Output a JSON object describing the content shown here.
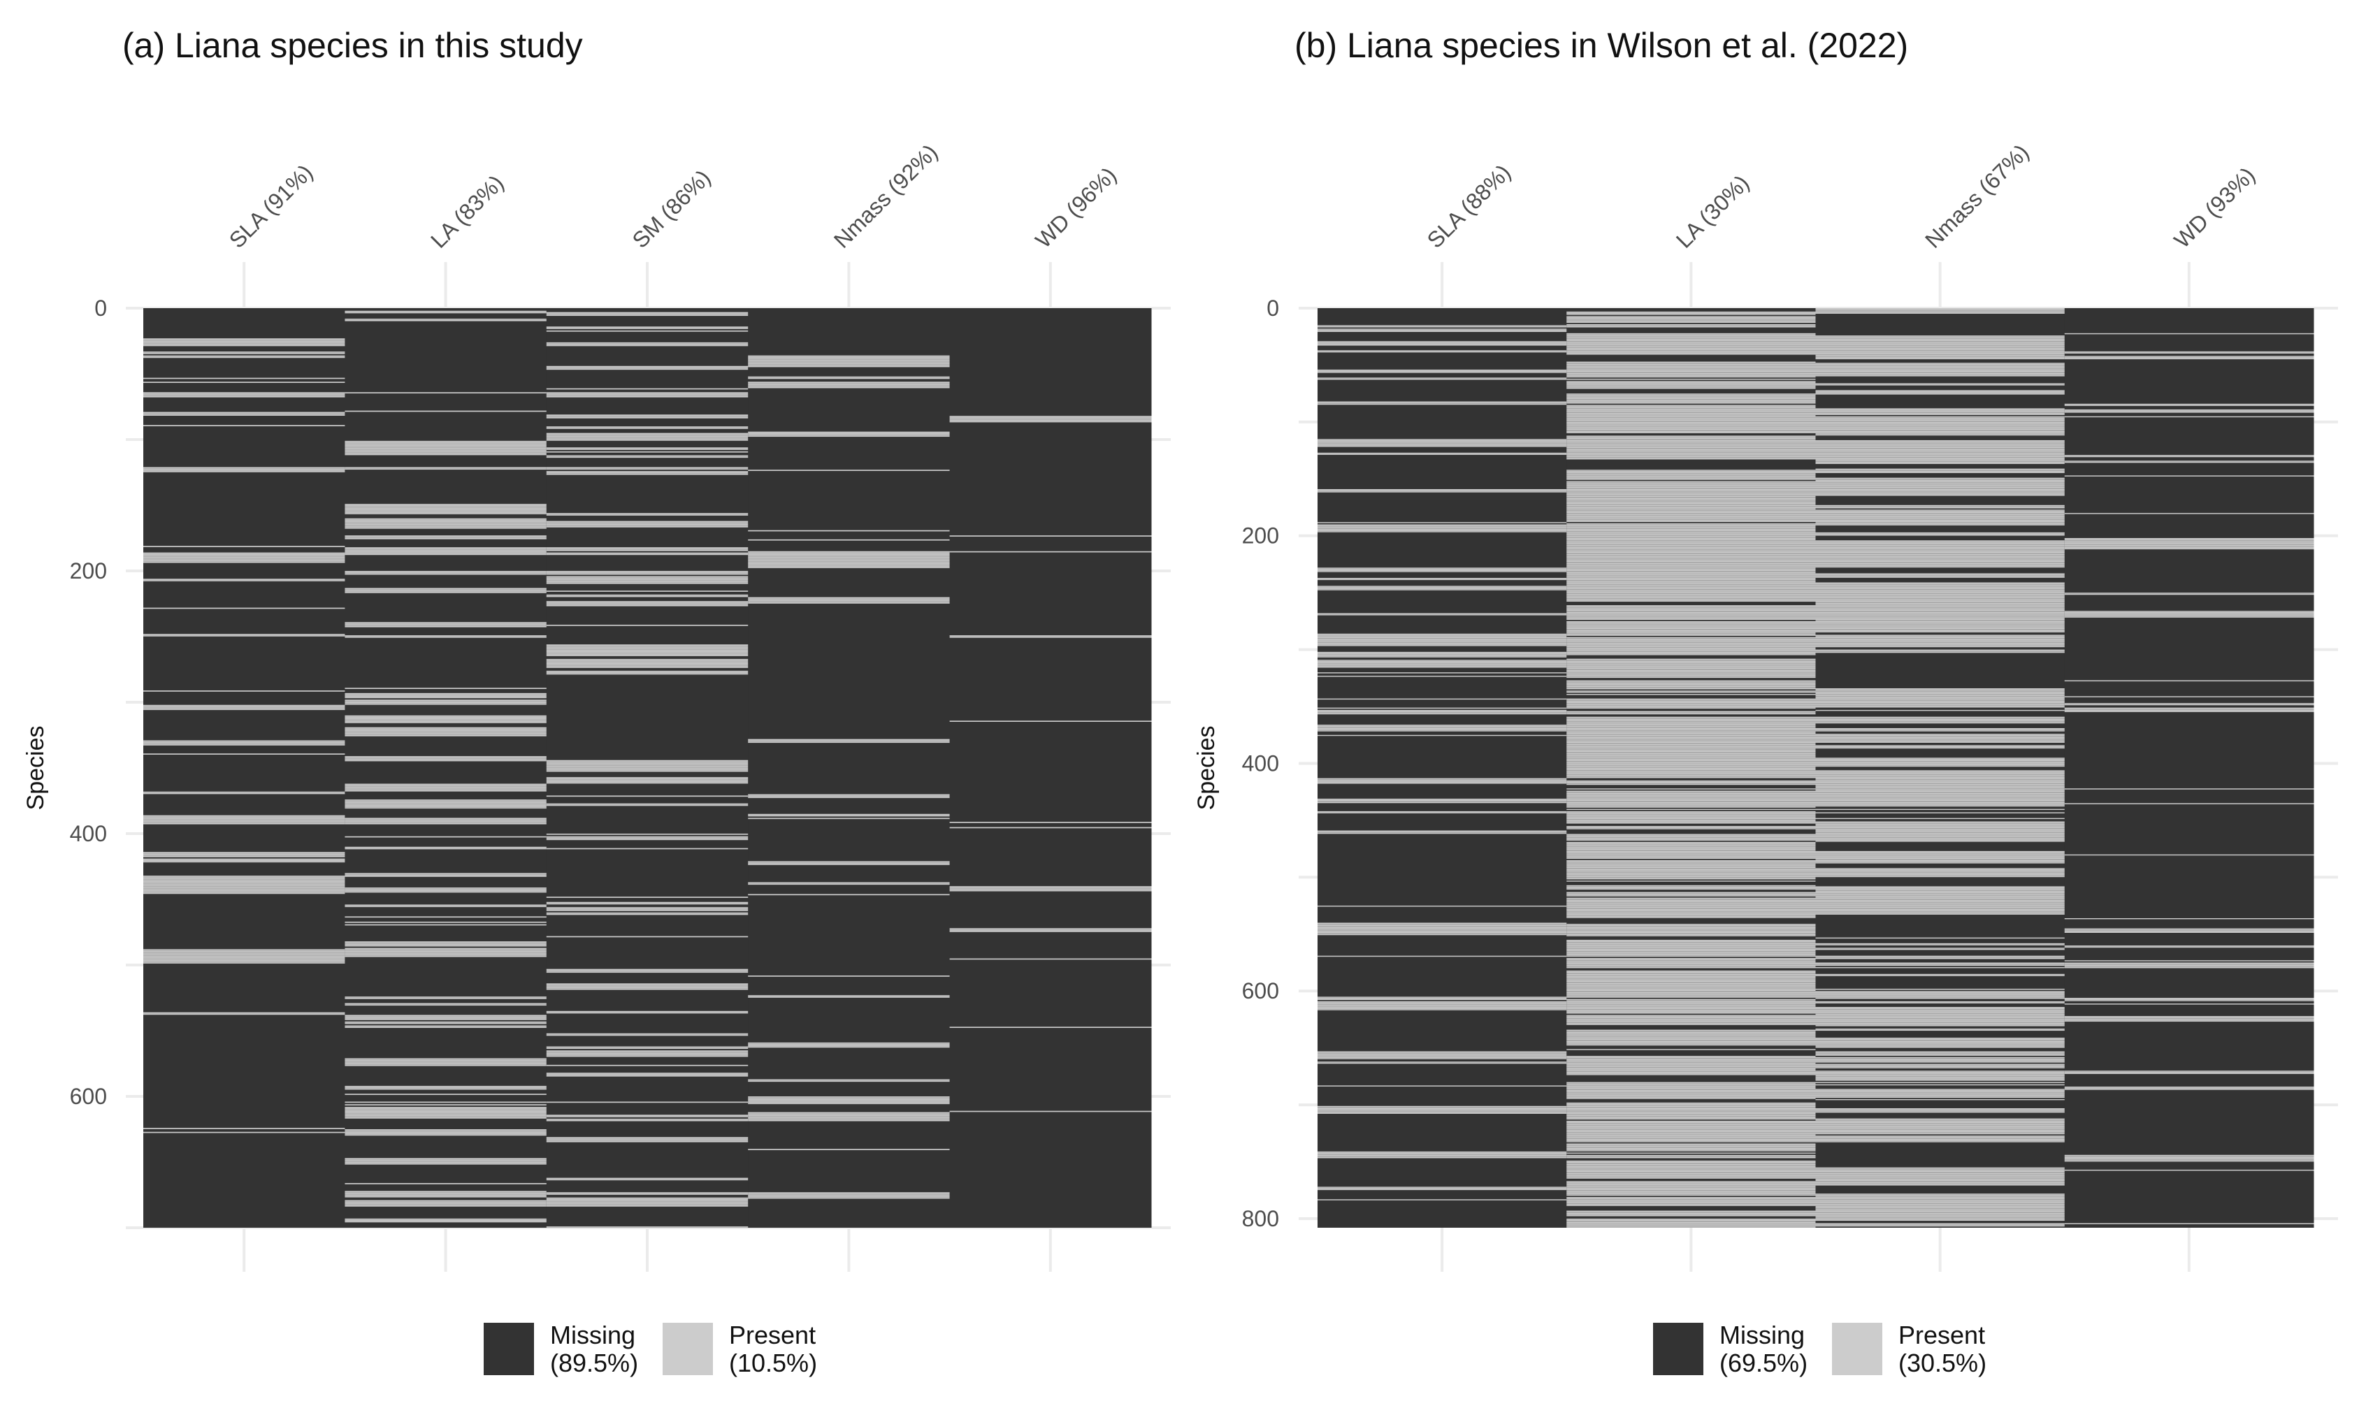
{
  "chart_data": [
    {
      "type": "heatmap",
      "title": "(a) Liana species in this study",
      "ylabel": "Species",
      "ylim": [
        0,
        700
      ],
      "yticks": [
        0,
        200,
        400,
        600
      ],
      "n_species": 700,
      "columns": [
        {
          "label": "SLA (91%)",
          "present_fraction": 0.09
        },
        {
          "label": "LA (83%)",
          "present_fraction": 0.17
        },
        {
          "label": "SM (86%)",
          "present_fraction": 0.14
        },
        {
          "label": "Nmass (92%)",
          "present_fraction": 0.08
        },
        {
          "label": "WD (96%)",
          "present_fraction": 0.04
        }
      ],
      "legend": {
        "position": "bottom",
        "entries": [
          {
            "line1": "Missing",
            "line2": "(89.5%)",
            "color": "#333333"
          },
          {
            "line1": "Present",
            "line2": "(10.5%)",
            "color": "#cccccc"
          }
        ]
      },
      "colors": {
        "missing": "#333333",
        "present": "#cccccc"
      }
    },
    {
      "type": "heatmap",
      "title": "(b) Liana species in Wilson et al. (2022)",
      "ylabel": "Species",
      "ylim": [
        0,
        808
      ],
      "yticks": [
        0,
        200,
        400,
        600,
        800
      ],
      "n_species": 808,
      "columns": [
        {
          "label": "SLA (88%)",
          "present_fraction": 0.12
        },
        {
          "label": "LA (30%)",
          "present_fraction": 0.7
        },
        {
          "label": "Nmass (67%)",
          "present_fraction": 0.33
        },
        {
          "label": "WD (93%)",
          "present_fraction": 0.07
        }
      ],
      "legend": {
        "position": "bottom",
        "entries": [
          {
            "line1": "Missing",
            "line2": "(69.5%)",
            "color": "#333333"
          },
          {
            "line1": "Present",
            "line2": "(30.5%)",
            "color": "#cccccc"
          }
        ]
      },
      "colors": {
        "missing": "#333333",
        "present": "#cccccc"
      }
    }
  ]
}
